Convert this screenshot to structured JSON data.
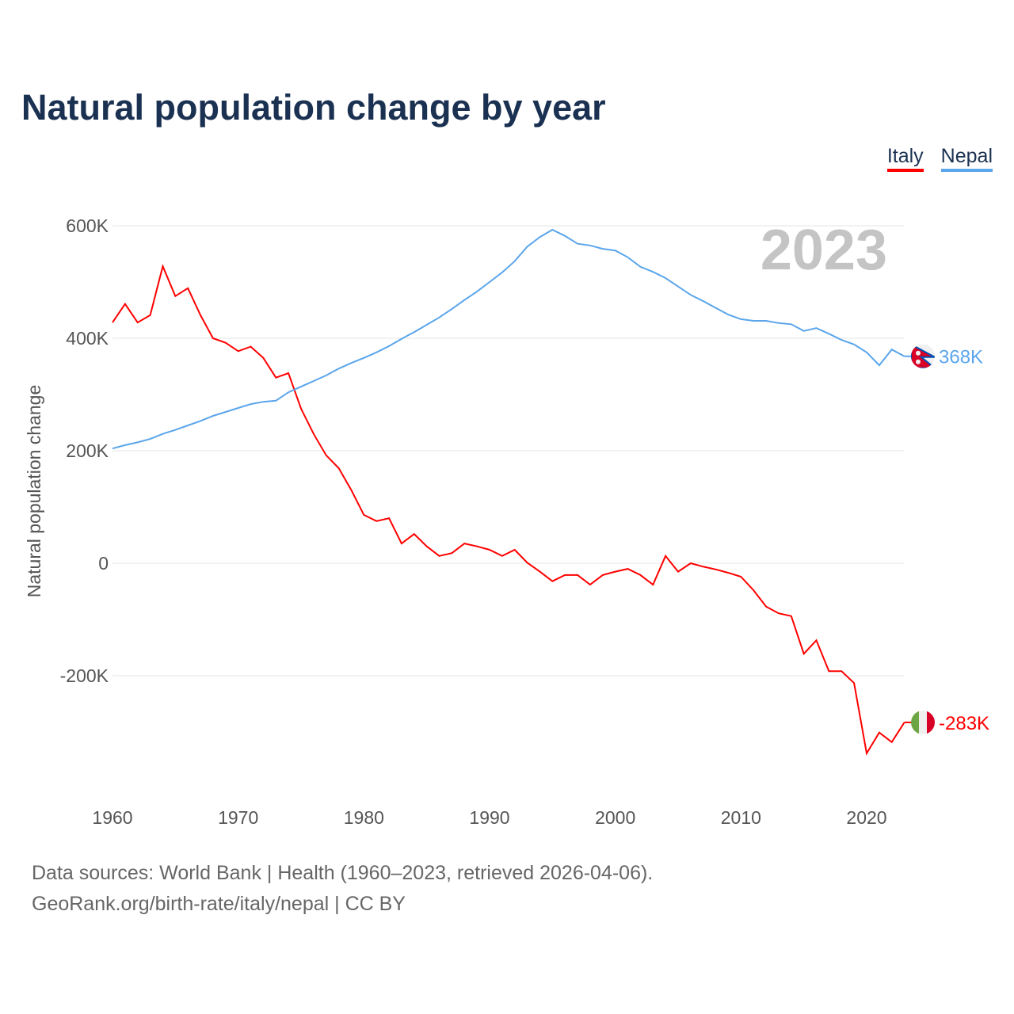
{
  "chart_data": {
    "type": "line",
    "title": "Natural population change by year",
    "ylabel": "Natural population change",
    "xlabel": "",
    "year_label": "2023",
    "xlim": [
      1960,
      2023
    ],
    "ylim": [
      -400000,
      600000
    ],
    "x_ticks": [
      "1960",
      "1970",
      "1980",
      "1990",
      "2000",
      "2010",
      "2020"
    ],
    "y_ticks": [
      {
        "v": 600000,
        "label": "600K"
      },
      {
        "v": 400000,
        "label": "400K"
      },
      {
        "v": 200000,
        "label": "200K"
      },
      {
        "v": 0,
        "label": "0"
      },
      {
        "v": -200000,
        "label": "-200K"
      }
    ],
    "x_start": 1960,
    "series": [
      {
        "name": "Italy",
        "color": "#ff0000",
        "end_label": "-283K",
        "flag": "italy-flag",
        "values": [
          428,
          461,
          428,
          441,
          528,
          475,
          489,
          441,
          400,
          392,
          377,
          385,
          365,
          330,
          338,
          275,
          230,
          192,
          169,
          130,
          86,
          75,
          80,
          35,
          52,
          30,
          13,
          18,
          35,
          30,
          24,
          13,
          24,
          1,
          -15,
          -32,
          -21,
          -21,
          -38,
          -21,
          -15,
          -10,
          -21,
          -38,
          13,
          -15,
          0,
          -6,
          -11,
          -17,
          -24,
          -48,
          -77,
          -89,
          -94,
          -161,
          -137,
          -192,
          -192,
          -213,
          -338,
          -301,
          -318,
          -283
        ]
      },
      {
        "name": "Nepal",
        "color": "#5aa5eb",
        "end_label": "368K",
        "flag": "nepal-flag",
        "values": [
          204,
          210,
          215,
          221,
          230,
          237,
          245,
          253,
          262,
          269,
          276,
          283,
          287,
          289,
          304,
          314,
          324,
          334,
          346,
          356,
          365,
          375,
          386,
          399,
          411,
          424,
          437,
          452,
          468,
          483,
          500,
          517,
          537,
          563,
          580,
          593,
          582,
          568,
          565,
          559,
          556,
          544,
          527,
          518,
          507,
          492,
          477,
          466,
          454,
          442,
          434,
          431,
          431,
          427,
          425,
          413,
          418,
          408,
          397,
          389,
          375,
          352,
          380,
          368
        ]
      }
    ],
    "units": "thousands",
    "grid": true,
    "legend_position": "top-right"
  },
  "footer": {
    "line1": "Data sources: World Bank | Health (1960–2023, retrieved 2026-04-06).",
    "line2": "GeoRank.org/birth-rate/italy/nepal | CC BY"
  }
}
